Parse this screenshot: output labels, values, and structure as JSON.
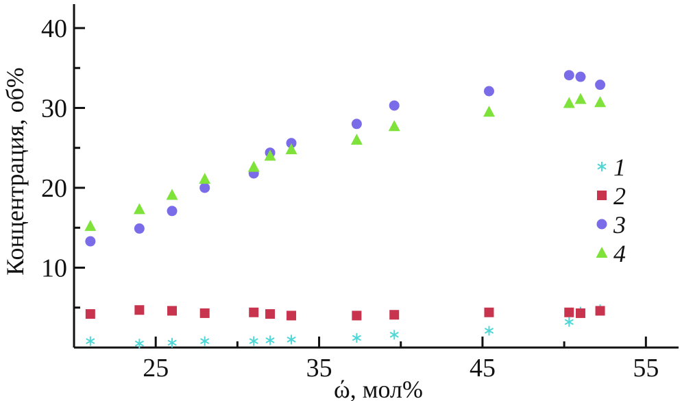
{
  "chart_data": {
    "type": "scatter",
    "title": "",
    "xlabel": "ώ, мол%",
    "ylabel": "Концентрация, об%",
    "xlim": [
      20,
      57
    ],
    "ylim": [
      0,
      43
    ],
    "x_ticks": [
      25,
      35,
      45,
      55
    ],
    "y_ticks": [
      10,
      20,
      30,
      40
    ],
    "x_tick_labels": [
      "25",
      "35",
      "45",
      "55"
    ],
    "y_tick_labels": [
      "10",
      "20",
      "30",
      "40"
    ],
    "grid": false,
    "legend_position": "right",
    "series": [
      {
        "name": "1",
        "marker": "asterisk",
        "color": "#4fd6d6",
        "points": [
          [
            21.0,
            0.8
          ],
          [
            24.0,
            0.5
          ],
          [
            26.0,
            0.6
          ],
          [
            28.0,
            0.8
          ],
          [
            31.0,
            0.8
          ],
          [
            32.0,
            0.9
          ],
          [
            33.3,
            1.0
          ],
          [
            37.3,
            1.2
          ],
          [
            39.6,
            1.6
          ],
          [
            45.4,
            2.1
          ],
          [
            50.3,
            3.2
          ],
          [
            51.0,
            4.5
          ],
          [
            52.2,
            4.8
          ]
        ]
      },
      {
        "name": "2",
        "marker": "square",
        "color": "#c8344e",
        "points": [
          [
            21.0,
            4.2
          ],
          [
            24.0,
            4.7
          ],
          [
            26.0,
            4.6
          ],
          [
            28.0,
            4.3
          ],
          [
            31.0,
            4.4
          ],
          [
            32.0,
            4.2
          ],
          [
            33.3,
            4.0
          ],
          [
            37.3,
            4.0
          ],
          [
            39.6,
            4.1
          ],
          [
            45.4,
            4.4
          ],
          [
            50.3,
            4.4
          ],
          [
            51.0,
            4.3
          ],
          [
            52.2,
            4.6
          ]
        ]
      },
      {
        "name": "3",
        "marker": "circle",
        "color": "#7a6ce8",
        "points": [
          [
            21.0,
            13.3
          ],
          [
            24.0,
            14.9
          ],
          [
            26.0,
            17.1
          ],
          [
            28.0,
            20.0
          ],
          [
            31.0,
            21.8
          ],
          [
            32.0,
            24.4
          ],
          [
            33.3,
            25.6
          ],
          [
            37.3,
            28.0
          ],
          [
            39.6,
            30.3
          ],
          [
            45.4,
            32.1
          ],
          [
            50.3,
            34.1
          ],
          [
            51.0,
            33.9
          ],
          [
            52.2,
            32.9
          ]
        ]
      },
      {
        "name": "4",
        "marker": "triangle",
        "color": "#7ee23a",
        "points": [
          [
            21.0,
            15.2
          ],
          [
            24.0,
            17.3
          ],
          [
            26.0,
            19.1
          ],
          [
            28.0,
            21.1
          ],
          [
            31.0,
            22.6
          ],
          [
            32.0,
            24.0
          ],
          [
            33.3,
            24.8
          ],
          [
            37.3,
            26.0
          ],
          [
            39.6,
            27.7
          ],
          [
            45.4,
            29.5
          ],
          [
            50.3,
            30.6
          ],
          [
            51.0,
            31.1
          ],
          [
            52.2,
            30.7
          ]
        ]
      }
    ]
  }
}
